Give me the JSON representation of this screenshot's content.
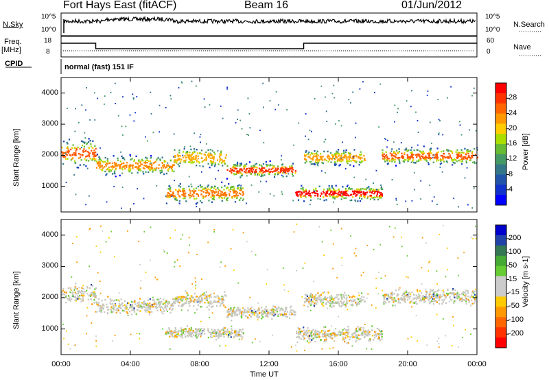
{
  "header": {
    "station": "Fort Hays East (fitACF)",
    "beam": "Beam 16",
    "date": "01/Jun/2012"
  },
  "status_panels": {
    "nsky_label": "N.Sky",
    "nsearch_label": "N.Search",
    "noise_ticks_left": [
      "10^5",
      "10^0"
    ],
    "noise_ticks_right": [
      "10^5",
      "10^0"
    ],
    "freq_label": "Freq.",
    "freq_unit": "[MHz]",
    "freq_ticks": [
      "18",
      "8"
    ],
    "nave_label": "Nave",
    "nave_ticks": [
      "60",
      "0"
    ],
    "cpid_label": "CPID",
    "cpid_value": "normal (fast) 151 IF"
  },
  "chart_data": [
    {
      "type": "heatmap",
      "name": "power",
      "ylabel": "Slant Range [km]",
      "xlabel": "Time UT",
      "x_ticks": [
        "00:00",
        "04:00",
        "08:00",
        "12:00",
        "16:00",
        "20:00",
        "00:00"
      ],
      "xlim_hours": [
        0,
        24
      ],
      "ylim_km": [
        180,
        4500
      ],
      "y_ticks": [
        1000,
        2000,
        3000,
        4000
      ],
      "colorbar": {
        "label": "Power [dB]",
        "ticks": [
          "28",
          "24",
          "20",
          "16",
          "12",
          "8",
          "4"
        ],
        "colors": [
          "#ff0000",
          "#ff3300",
          "#ff6600",
          "#ff9900",
          "#ffcc00",
          "#aadd00",
          "#66bb33",
          "#449966",
          "#337788",
          "#2255aa",
          "#1133cc",
          "#0000ff"
        ]
      },
      "bands": [
        {
          "t0": 0.0,
          "t1": 2.0,
          "r_center": 2100,
          "r_width": 700,
          "core_color": "#ff5500"
        },
        {
          "t0": 2.0,
          "t1": 6.5,
          "r_center": 1700,
          "r_width": 500,
          "core_color": "#ff8800"
        },
        {
          "t0": 6.5,
          "t1": 9.5,
          "r_center": 1950,
          "r_width": 500,
          "core_color": "#ffaa00"
        },
        {
          "t0": 9.5,
          "t1": 13.5,
          "r_center": 1550,
          "r_width": 400,
          "core_color": "#ff3300"
        },
        {
          "t0": 13.5,
          "t1": 18.5,
          "r_center": 800,
          "r_width": 400,
          "core_color": "#ff0000"
        },
        {
          "t0": 14.0,
          "t1": 17.5,
          "r_center": 1950,
          "r_width": 400,
          "core_color": "#ff9900"
        },
        {
          "t0": 18.5,
          "t1": 24.0,
          "r_center": 2000,
          "r_width": 450,
          "core_color": "#ff5500"
        },
        {
          "t0": 6.0,
          "t1": 10.5,
          "r_center": 800,
          "r_width": 500,
          "core_color": "#ff7700"
        }
      ]
    },
    {
      "type": "heatmap",
      "name": "velocity",
      "ylabel": "Slant Range [km]",
      "xlabel": "Time UT",
      "x_ticks": [
        "00:00",
        "04:00",
        "08:00",
        "12:00",
        "16:00",
        "20:00",
        "00:00"
      ],
      "xlim_hours": [
        0,
        24
      ],
      "ylim_km": [
        180,
        4500
      ],
      "y_ticks": [
        1000,
        2000,
        3000,
        4000
      ],
      "colorbar": {
        "label": "Velocity [m s-1]",
        "ticks": [
          "200",
          "100",
          "50",
          "15",
          "-15",
          "-50",
          "-100",
          "-200"
        ],
        "colors": [
          "#0000cc",
          "#2244aa",
          "#337755",
          "#44aa33",
          "#66cc33",
          "#cccccc",
          "#cccccc",
          "#ffcc00",
          "#ff9900",
          "#ff6600",
          "#ff3300",
          "#ff0000"
        ]
      },
      "bands": [
        {
          "t0": 0.0,
          "t1": 2.0,
          "r_center": 2150,
          "r_width": 500,
          "core_color": "#c8c8c0"
        },
        {
          "t0": 2.0,
          "t1": 6.5,
          "r_center": 1750,
          "r_width": 450,
          "core_color": "#c8c8c0"
        },
        {
          "t0": 6.5,
          "t1": 9.5,
          "r_center": 1950,
          "r_width": 450,
          "core_color": "#c8c8c0"
        },
        {
          "t0": 9.5,
          "t1": 13.5,
          "r_center": 1550,
          "r_width": 350,
          "core_color": "#c8c8c0"
        },
        {
          "t0": 13.5,
          "t1": 18.5,
          "r_center": 850,
          "r_width": 400,
          "core_color": "#c8c8c0"
        },
        {
          "t0": 14.0,
          "t1": 17.5,
          "r_center": 1950,
          "r_width": 400,
          "core_color": "#c8c8c0"
        },
        {
          "t0": 18.5,
          "t1": 24.0,
          "r_center": 2050,
          "r_width": 400,
          "core_color": "#c8c8c0"
        },
        {
          "t0": 6.0,
          "t1": 10.5,
          "r_center": 900,
          "r_width": 300,
          "core_color": "#c8c8c0"
        }
      ]
    }
  ]
}
